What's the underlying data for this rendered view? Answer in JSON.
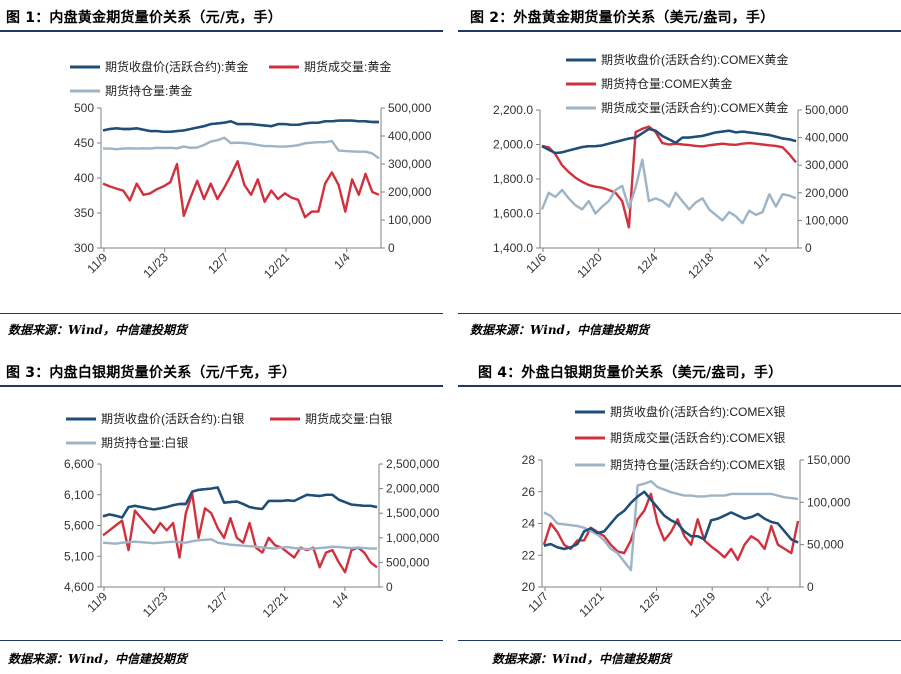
{
  "colors": {
    "navy": "#1f4e79",
    "red": "#d0313d",
    "gray": "#9db3c6",
    "rule": "#1f3864"
  },
  "panels": [
    {
      "title": "图 1：内盘黄金期货量价关系（元/克，手）",
      "source": "数据来源：Wind，中信建投期货"
    },
    {
      "title": "图 2：外盘黄金期货量价关系（美元/盎司，手）",
      "source": "数据来源：Wind，中信建投期货"
    },
    {
      "title": "图 3：内盘白银期货量价关系（元/千克，手）",
      "source": "数据来源：Wind，中信建投期货"
    },
    {
      "title": "图 4：外盘白银期货量价关系（美元/盎司，手）",
      "source": "数据来源：Wind，中信建投期货"
    }
  ],
  "chart_data": [
    {
      "type": "line",
      "legend": [
        {
          "name": "期货收盘价(活跃合约):黄金",
          "color": "#1f4e79"
        },
        {
          "name": "期货成交量:黄金",
          "color": "#d0313d"
        },
        {
          "name": "期货持仓量:黄金",
          "color": "#9db3c6"
        }
      ],
      "x_ticks": [
        "11/9",
        "11/23",
        "12/7",
        "12/21",
        "1/4"
      ],
      "y_left": {
        "min": 300,
        "max": 500,
        "step": 50,
        "labels": [
          "300",
          "350",
          "400",
          "450",
          "500"
        ]
      },
      "y_right": {
        "min": 0,
        "max": 500000,
        "step": 100000,
        "labels": [
          "0",
          "100,000",
          "200,000",
          "300,000",
          "400,000",
          "500,000"
        ]
      },
      "series": [
        {
          "name": "期货收盘价(活跃合约):黄金",
          "axis": "left",
          "color": "#1f4e79",
          "values": [
            468,
            470,
            471,
            470,
            470,
            471,
            469,
            467,
            467,
            466,
            466,
            467,
            468,
            470,
            472,
            474,
            477,
            478,
            479,
            481,
            477,
            477,
            477,
            476,
            475,
            474,
            477,
            477,
            476,
            476,
            478,
            479,
            479,
            481,
            481,
            482,
            482,
            482,
            481,
            481,
            480,
            480
          ]
        },
        {
          "name": "期货成交量:黄金",
          "axis": "right",
          "color": "#d0313d",
          "values": [
            230000,
            220000,
            212000,
            205000,
            170000,
            230000,
            190000,
            195000,
            210000,
            220000,
            235000,
            300000,
            115000,
            180000,
            240000,
            175000,
            230000,
            175000,
            215000,
            260000,
            310000,
            225000,
            190000,
            245000,
            165000,
            205000,
            175000,
            195000,
            180000,
            172000,
            110000,
            130000,
            130000,
            230000,
            270000,
            225000,
            130000,
            245000,
            190000,
            265000,
            200000,
            190000
          ]
        },
        {
          "name": "期货持仓量:黄金",
          "axis": "right",
          "color": "#9db3c6",
          "values": [
            355000,
            355000,
            353000,
            355000,
            356000,
            355000,
            356000,
            355000,
            358000,
            357000,
            358000,
            356000,
            362000,
            358000,
            359000,
            368000,
            380000,
            385000,
            394000,
            375000,
            376000,
            375000,
            372000,
            368000,
            364000,
            364000,
            362000,
            362000,
            364000,
            367000,
            374000,
            376000,
            378000,
            378000,
            382000,
            348000,
            346000,
            345000,
            344000,
            344000,
            338000,
            320000
          ]
        }
      ]
    },
    {
      "type": "line",
      "legend": [
        {
          "name": "期货收盘价(活跃合约):COMEX黄金",
          "color": "#1f4e79"
        },
        {
          "name": "期货持仓量:COMEX黄金",
          "color": "#d0313d"
        },
        {
          "name": "期货成交量(活跃合约):COMEX黄金",
          "color": "#9db3c6"
        }
      ],
      "x_ticks": [
        "11/6",
        "11/20",
        "12/4",
        "12/18",
        "1/1"
      ],
      "y_left": {
        "min": 1400,
        "max": 2200,
        "step": 200,
        "labels": [
          "1,400.0",
          "1,600.0",
          "1,800.0",
          "2,000.0",
          "2,200.0"
        ]
      },
      "y_right": {
        "min": 0,
        "max": 500000,
        "step": 100000,
        "labels": [
          "0",
          "100,000",
          "200,000",
          "300,000",
          "400,000",
          "500,000"
        ]
      },
      "series": [
        {
          "name": "期货收盘价(活跃合约):COMEX黄金",
          "axis": "left",
          "color": "#1f4e79",
          "values": [
            1990,
            1970,
            1950,
            1955,
            1965,
            1975,
            1985,
            1990,
            1990,
            1995,
            2005,
            2015,
            2025,
            2035,
            2040,
            2065,
            2090,
            2080,
            2050,
            2030,
            2010,
            2040,
            2040,
            2045,
            2050,
            2060,
            2070,
            2075,
            2080,
            2070,
            2075,
            2070,
            2065,
            2060,
            2055,
            2045,
            2035,
            2030,
            2020
          ]
        },
        {
          "name": "期货持仓量:COMEX黄金",
          "axis": "right",
          "color": "#d0313d",
          "values": [
            370000,
            365000,
            340000,
            300000,
            275000,
            255000,
            240000,
            228000,
            222000,
            218000,
            210000,
            200000,
            170000,
            75000,
            420000,
            432000,
            440000,
            420000,
            380000,
            375000,
            378000,
            375000,
            373000,
            370000,
            368000,
            372000,
            375000,
            378000,
            375000,
            374000,
            378000,
            380000,
            378000,
            375000,
            372000,
            370000,
            365000,
            340000,
            310000
          ]
        },
        {
          "name": "期货成交量(活跃合约):COMEX黄金",
          "axis": "right",
          "color": "#9db3c6",
          "values": [
            140000,
            200000,
            185000,
            210000,
            180000,
            155000,
            140000,
            170000,
            125000,
            150000,
            170000,
            210000,
            225000,
            145000,
            220000,
            320000,
            170000,
            180000,
            170000,
            150000,
            200000,
            170000,
            140000,
            165000,
            180000,
            140000,
            120000,
            100000,
            130000,
            115000,
            90000,
            135000,
            120000,
            130000,
            195000,
            150000,
            195000,
            190000,
            180000
          ]
        }
      ]
    },
    {
      "type": "line",
      "legend": [
        {
          "name": "期货收盘价(活跃合约):白银",
          "color": "#1f4e79"
        },
        {
          "name": "期货成交量:白银",
          "color": "#d0313d"
        },
        {
          "name": "期货持仓量:白银",
          "color": "#9db3c6"
        }
      ],
      "x_ticks": [
        "11/9",
        "11/23",
        "12/7",
        "12/21",
        "1/4"
      ],
      "y_left": {
        "min": 4600,
        "max": 6600,
        "step": 500,
        "labels": [
          "4,600",
          "5,100",
          "5,600",
          "6,100",
          "6,600"
        ]
      },
      "y_right": {
        "min": 0,
        "max": 2500000,
        "step": 500000,
        "labels": [
          "0",
          "500,000",
          "1,000,000",
          "1,500,000",
          "2,000,000",
          "2,500,000"
        ]
      },
      "series": [
        {
          "name": "期货收盘价(活跃合约):白银",
          "axis": "left",
          "color": "#1f4e79",
          "values": [
            5750,
            5780,
            5760,
            5730,
            5900,
            5920,
            5900,
            5880,
            5860,
            5880,
            5900,
            5930,
            5950,
            5950,
            6150,
            6180,
            6190,
            6200,
            6220,
            5970,
            5980,
            5990,
            5950,
            5900,
            5880,
            5870,
            6000,
            6000,
            6000,
            6010,
            6000,
            6050,
            6100,
            6090,
            6080,
            6100,
            6100,
            6020,
            5980,
            5940,
            5930,
            5920,
            5920,
            5900
          ]
        },
        {
          "name": "期货成交量:白银",
          "axis": "right",
          "color": "#d0313d",
          "values": [
            1050000,
            1150000,
            1250000,
            1350000,
            750000,
            1550000,
            1400000,
            1250000,
            1100000,
            1300000,
            1150000,
            1300000,
            600000,
            1500000,
            1900000,
            1000000,
            1600000,
            1500000,
            1200000,
            1000000,
            1400000,
            1000000,
            900000,
            1300000,
            800000,
            700000,
            1000000,
            850000,
            800000,
            700000,
            600000,
            800000,
            750000,
            800000,
            400000,
            700000,
            750000,
            500000,
            300000,
            750000,
            800000,
            700000,
            500000,
            400000
          ]
        },
        {
          "name": "期货持仓量:白银",
          "axis": "right",
          "color": "#9db3c6",
          "values": [
            900000,
            890000,
            880000,
            900000,
            910000,
            920000,
            910000,
            900000,
            890000,
            900000,
            910000,
            920000,
            910000,
            900000,
            930000,
            950000,
            960000,
            970000,
            900000,
            880000,
            860000,
            850000,
            840000,
            830000,
            820000,
            800000,
            790000,
            780000,
            800000,
            810000,
            790000,
            780000,
            770000,
            780000,
            790000,
            800000,
            820000,
            810000,
            800000,
            790000,
            800000,
            790000,
            780000,
            780000
          ]
        }
      ]
    },
    {
      "type": "line",
      "legend": [
        {
          "name": "期货收盘价(活跃合约):COMEX银",
          "color": "#1f4e79"
        },
        {
          "name": "期货成交量(活跃合约):COMEX银",
          "color": "#d0313d"
        },
        {
          "name": "期货持仓量(活跃合约):COMEX银",
          "color": "#9db3c6"
        }
      ],
      "x_ticks": [
        "11/7",
        "11/21",
        "12/5",
        "12/19",
        "1/2"
      ],
      "y_left": {
        "min": 20,
        "max": 28,
        "step": 2,
        "labels": [
          "20",
          "22",
          "24",
          "26",
          "28"
        ]
      },
      "y_right": {
        "min": 0,
        "max": 150000,
        "step": 50000,
        "labels": [
          "0",
          "50,000",
          "100,000",
          "150,000"
        ]
      },
      "series": [
        {
          "name": "期货收盘价(活跃合约):COMEX银",
          "axis": "left",
          "color": "#1f4e79",
          "values": [
            22.6,
            22.7,
            22.5,
            22.4,
            22.5,
            22.7,
            23.5,
            23.7,
            23.4,
            23.5,
            24.0,
            24.5,
            24.8,
            25.3,
            25.7,
            26.0,
            25.5,
            25.0,
            24.5,
            24.2,
            24.0,
            23.5,
            23.2,
            23.2,
            23.0,
            24.2,
            24.3,
            24.5,
            24.7,
            24.5,
            24.3,
            24.4,
            24.6,
            24.3,
            24.1,
            24.0,
            23.5,
            23.0,
            22.8
          ]
        },
        {
          "name": "期货成交量(活跃合约):COMEX银",
          "axis": "right",
          "color": "#d0313d",
          "values": [
            50000,
            75000,
            65000,
            50000,
            45000,
            55000,
            55000,
            70000,
            65000,
            60000,
            50000,
            42000,
            40000,
            55000,
            80000,
            90000,
            110000,
            75000,
            55000,
            65000,
            80000,
            60000,
            50000,
            80000,
            55000,
            48000,
            42000,
            35000,
            45000,
            32000,
            50000,
            60000,
            55000,
            45000,
            72000,
            50000,
            45000,
            40000,
            78000
          ]
        },
        {
          "name": "期货持仓量(活跃合约):COMEX银",
          "axis": "right",
          "color": "#9db3c6",
          "values": [
            88000,
            84000,
            75000,
            74000,
            73000,
            72000,
            70000,
            66000,
            62000,
            55000,
            45000,
            40000,
            30000,
            20000,
            120000,
            122000,
            125000,
            118000,
            115000,
            112000,
            110000,
            108000,
            108000,
            107000,
            107000,
            108000,
            108000,
            108000,
            110000,
            110000,
            110000,
            110000,
            110000,
            110000,
            110000,
            108000,
            106000,
            105000,
            104000
          ]
        }
      ]
    }
  ]
}
